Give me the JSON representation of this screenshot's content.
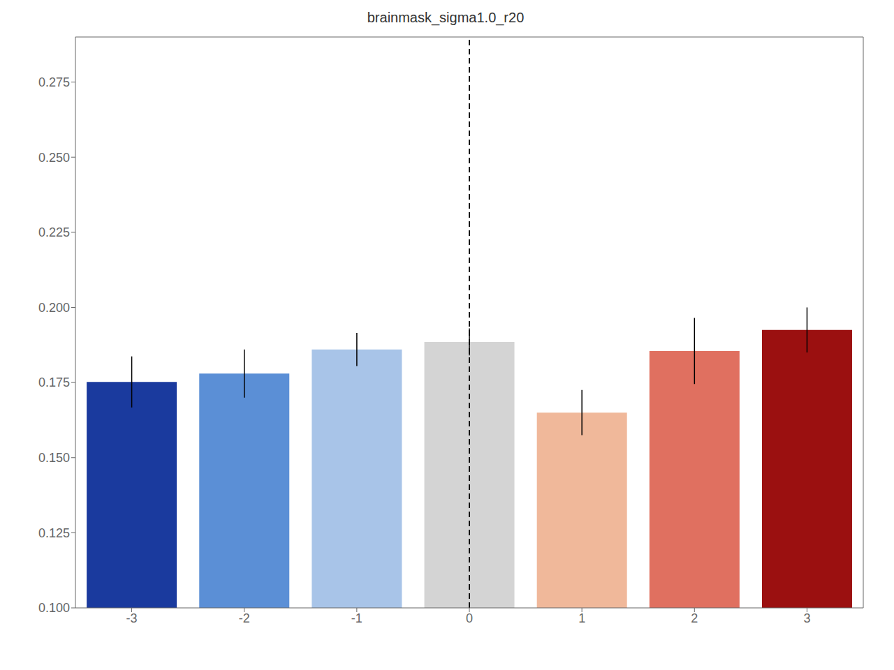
{
  "chart_data": {
    "type": "bar",
    "title": "brainmask_sigma1.0_r20",
    "x": [
      -3,
      -2,
      -1,
      0,
      1,
      2,
      3
    ],
    "values": [
      0.1752,
      0.178,
      0.186,
      0.1885,
      0.165,
      0.1855,
      0.1925
    ],
    "errors": [
      0.0085,
      0.008,
      0.0055,
      0.0045,
      0.0075,
      0.011,
      0.0075
    ],
    "colors": [
      "#1a3a9e",
      "#5b8fd6",
      "#a8c4e8",
      "#d4d4d4",
      "#f0b89a",
      "#e07060",
      "#9b1010"
    ],
    "ylim": [
      0.1,
      0.29
    ],
    "yticks": [
      {
        "value": 0.1,
        "label": "0.100"
      },
      0.125,
      {
        "value": 0.15,
        "label": "0.150"
      },
      0.175,
      {
        "value": 0.2,
        "label": "0.200"
      },
      0.225,
      {
        "value": 0.25,
        "label": "0.250"
      },
      0.275
    ],
    "grid": false,
    "reference_line": {
      "x": 0,
      "color": "black",
      "line_style": "dashed"
    }
  }
}
